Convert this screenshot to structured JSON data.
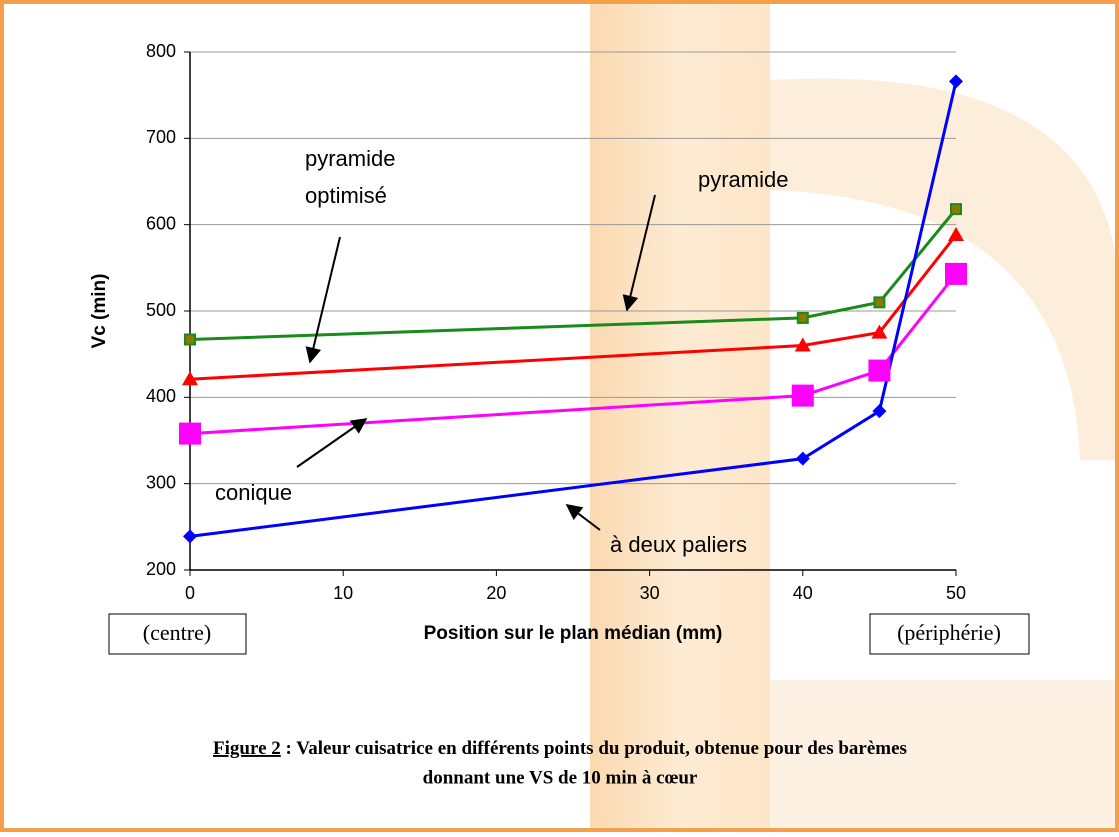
{
  "chart_data": {
    "type": "line",
    "ylabel": "Vc (min)",
    "xlabel": "Position sur le plan médian (mm)",
    "x": [
      0,
      40,
      45,
      50
    ],
    "series": [
      {
        "name": "pyramide optimisé",
        "color": "#1a8a1a",
        "marker": "square-small",
        "marker_fill": "#8a7a00",
        "values": [
          467,
          492,
          510,
          618
        ]
      },
      {
        "name": "pyramide",
        "color": "#ff0000",
        "marker": "triangle",
        "marker_fill": "#ff0000",
        "values": [
          421,
          460,
          475,
          588
        ]
      },
      {
        "name": "conique",
        "color": "#ff00ff",
        "marker": "square-big",
        "marker_fill": "#ff00ff",
        "values": [
          358,
          402,
          431,
          543
        ]
      },
      {
        "name": "à deux paliers",
        "color": "#0000ff",
        "marker": "diamond",
        "marker_fill": "#0000ff",
        "values": [
          239,
          329,
          384,
          766
        ]
      }
    ],
    "xlim": [
      0,
      50
    ],
    "xticks": [
      0,
      10,
      20,
      30,
      40,
      50
    ],
    "ylim": [
      200,
      800
    ],
    "yticks": [
      200,
      300,
      400,
      500,
      600,
      700,
      800
    ],
    "grid": true,
    "annotations": [
      {
        "lines": [
          "pyramide",
          "optimisé"
        ]
      },
      {
        "lines": [
          "pyramide"
        ]
      },
      {
        "lines": [
          "conique"
        ]
      },
      {
        "lines": [
          "à deux paliers"
        ]
      }
    ],
    "x_notes": [
      "(centre)",
      "(périphérie)"
    ],
    "caption": {
      "label": "Figure 2",
      "lines": [
        " : Valeur cuisatrice en différents points du produit, obtenue pour des barèmes",
        "donnant une VS de 10 min à cœur"
      ]
    }
  }
}
